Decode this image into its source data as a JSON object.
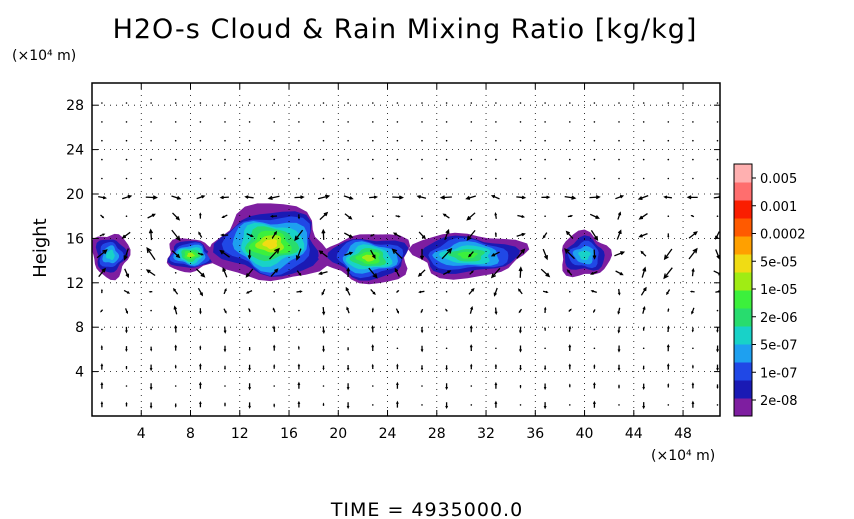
{
  "chart_data": {
    "type": "heatmap",
    "title": "H2O-s Cloud & Rain Mixing Ratio [kg/kg]",
    "ylabel": "Height",
    "y_unit": "(×10⁴ m)",
    "x_unit": "(×10⁴ m)",
    "xlim": [
      0,
      51
    ],
    "ylim": [
      0,
      30
    ],
    "x_ticks": [
      4,
      8,
      12,
      16,
      20,
      24,
      28,
      32,
      36,
      40,
      44,
      48
    ],
    "y_ticks": [
      4,
      8,
      12,
      16,
      20,
      24,
      28
    ],
    "grid": true,
    "legend_position": "right",
    "colorbar": {
      "labels": [
        "0.005",
        "0.001",
        "0.0002",
        "5e-05",
        "1e-05",
        "2e-06",
        "5e-07",
        "1e-07",
        "2e-08"
      ],
      "colors": [
        "#7e1ea0",
        "#1a1ab4",
        "#2048e6",
        "#1ea0f0",
        "#18d2c8",
        "#28dc6e",
        "#3cf03c",
        "#a0ec14",
        "#f0dc14",
        "#ffa000",
        "#ff5a00",
        "#fa1e00",
        "#ff6e6e",
        "#ffb0b0"
      ]
    },
    "cloud_regions": [
      {
        "x": [
          0,
          3
        ],
        "y": [
          12.5,
          16.5
        ],
        "peak": 4
      },
      {
        "x": [
          6,
          10
        ],
        "y": [
          13,
          16
        ],
        "peak": 7
      },
      {
        "x": [
          10,
          19
        ],
        "y": [
          12,
          19
        ],
        "peak": 8
      },
      {
        "x": [
          19,
          26
        ],
        "y": [
          12,
          16.5
        ],
        "peak": 7
      },
      {
        "x": [
          26,
          35
        ],
        "y": [
          12.5,
          16.5
        ],
        "peak": 6
      },
      {
        "x": [
          38,
          42
        ],
        "y": [
          12.5,
          16.5
        ],
        "peak": 4
      }
    ],
    "time_label": "TIME  =  4935000.0"
  }
}
